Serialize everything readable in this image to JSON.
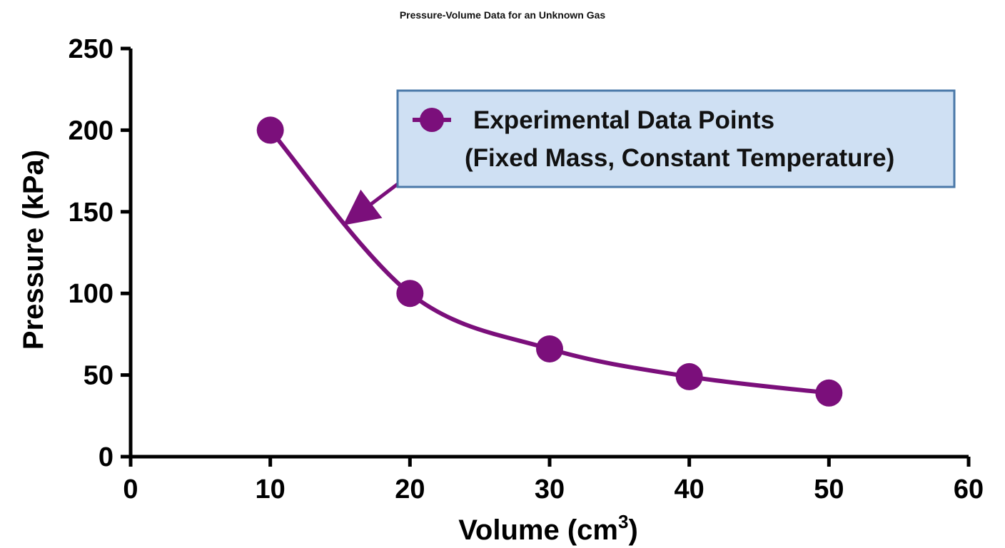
{
  "chart_data": {
    "type": "line",
    "title": "Pressure-Volume Data for an Unknown Gas",
    "xlabel": "Volume (cm",
    "xlabel_superscript": "3",
    "xlabel_close": ")",
    "ylabel": "Pressure (kPa)",
    "xlim": [
      0,
      60
    ],
    "ylim": [
      0,
      250
    ],
    "xticks": [
      "0",
      "10",
      "20",
      "30",
      "40",
      "50",
      "60"
    ],
    "yticks": [
      "0",
      "50",
      "100",
      "150",
      "200",
      "250"
    ],
    "grid": false,
    "series": [
      {
        "name": "Experimental Data Points",
        "color": "#7b0f7b",
        "x": [
          10,
          20,
          30,
          40,
          50
        ],
        "y": [
          200,
          100,
          66,
          49,
          39
        ]
      }
    ],
    "legend": {
      "position": "top-right",
      "line1": "Experimental Data Points",
      "line2": "(Fixed Mass, Constant Temperature)",
      "background": "#cfe0f3",
      "border": "#4a78a8"
    },
    "annotation": {
      "type": "arrow",
      "from": "legend",
      "to_x": 15,
      "to_y": 140
    }
  }
}
